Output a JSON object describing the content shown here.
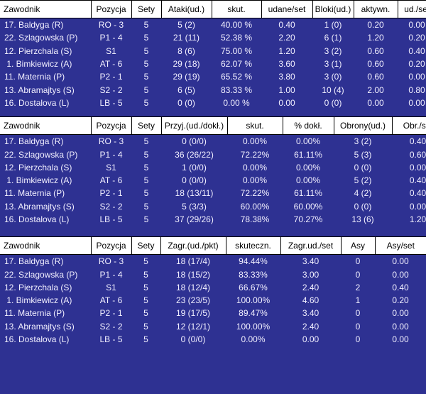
{
  "theme": {
    "bg": "#2E3192",
    "header_bg": "#FFFFFF",
    "header_text": "#000000",
    "row_text": "#F2F0FF",
    "border": "#000000"
  },
  "tables": [
    {
      "title": "attack-and-block-stats",
      "columns": [
        "Zawodnik",
        "Pozycja",
        "Sety",
        "Ataki(ud.)",
        "skut.",
        "udane/set",
        "Bloki(ud.)",
        "aktywn.",
        "ud./set"
      ],
      "rows": [
        [
          "17. Baldyga (R)",
          "RO - 3",
          "5",
          "5 (2)",
          "40.00 %",
          "0.40",
          "1 (0)",
          "0.20",
          "0.00"
        ],
        [
          "22. Szlagowska (P)",
          "P1 - 4",
          "5",
          "21 (11)",
          "52.38 %",
          "2.20",
          "6 (1)",
          "1.20",
          "0.20"
        ],
        [
          "12. Pierzchala (S)",
          "S1",
          "5",
          "8 (6)",
          "75.00 %",
          "1.20",
          "3 (2)",
          "0.60",
          "0.40"
        ],
        [
          " 1. Bimkiewicz (A)",
          "AT - 6",
          "5",
          "29 (18)",
          "62.07 %",
          "3.60",
          "3 (1)",
          "0.60",
          "0.20"
        ],
        [
          "11. Maternia (P)",
          "P2 - 1",
          "5",
          "29 (19)",
          "65.52 %",
          "3.80",
          "3 (0)",
          "0.60",
          "0.00"
        ],
        [
          "13. Abramajtys (S)",
          "S2 - 2",
          "5",
          "6 (5)",
          "83.33 %",
          "1.00",
          "10 (4)",
          "2.00",
          "0.80"
        ],
        [
          "16. Dostalova (L)",
          "LB - 5",
          "5",
          "0 (0)",
          "0.00 %",
          "0.00",
          "0 (0)",
          "0.00",
          "0.00"
        ]
      ]
    },
    {
      "title": "reception-and-defense-stats",
      "columns": [
        "Zawodnik",
        "Pozycja",
        "Sety",
        "Przyj.(ud./dokł.)",
        "skut.",
        "% dokł.",
        "Obrony(ud.)",
        "Obr./set"
      ],
      "rows": [
        [
          "17. Baldyga (R)",
          "RO - 3",
          "5",
          "0 (0/0)",
          "0.00%",
          "0.00%",
          "3 (2)",
          "0.40"
        ],
        [
          "22. Szlagowska (P)",
          "P1 - 4",
          "5",
          "36 (26/22)",
          "72.22%",
          "61.11%",
          "5 (3)",
          "0.60"
        ],
        [
          "12. Pierzchala (S)",
          "S1",
          "5",
          "1 (0/0)",
          "0.00%",
          "0.00%",
          "0 (0)",
          "0.00"
        ],
        [
          " 1. Bimkiewicz (A)",
          "AT - 6",
          "5",
          "0 (0/0)",
          "0.00%",
          "0.00%",
          "5 (2)",
          "0.40"
        ],
        [
          "11. Maternia (P)",
          "P2 - 1",
          "5",
          "18 (13/11)",
          "72.22%",
          "61.11%",
          "4 (2)",
          "0.40"
        ],
        [
          "13. Abramajtys (S)",
          "S2 - 2",
          "5",
          "5 (3/3)",
          "60.00%",
          "60.00%",
          "0 (0)",
          "0.00"
        ],
        [
          "16. Dostalova (L)",
          "LB - 5",
          "5",
          "37 (29/26)",
          "78.38%",
          "70.27%",
          "13 (6)",
          "1.20"
        ]
      ]
    },
    {
      "title": "serve-stats",
      "columns": [
        "Zawodnik",
        "Pozycja",
        "Sety",
        "Zagr.(ud./pkt)",
        "skuteczn.",
        "Zagr.ud./set",
        "Asy",
        "Asy/set"
      ],
      "rows": [
        [
          "17. Baldyga (R)",
          "RO - 3",
          "5",
          "18 (17/4)",
          "94.44%",
          "3.40",
          "0",
          "0.00"
        ],
        [
          "22. Szlagowska (P)",
          "P1 - 4",
          "5",
          "18 (15/2)",
          "83.33%",
          "3.00",
          "0",
          "0.00"
        ],
        [
          "12. Pierzchala (S)",
          "S1",
          "5",
          "18 (12/4)",
          "66.67%",
          "2.40",
          "2",
          "0.40"
        ],
        [
          " 1. Bimkiewicz (A)",
          "AT - 6",
          "5",
          "23 (23/5)",
          "100.00%",
          "4.60",
          "1",
          "0.20"
        ],
        [
          "11. Maternia (P)",
          "P2 - 1",
          "5",
          "19 (17/5)",
          "89.47%",
          "3.40",
          "0",
          "0.00"
        ],
        [
          "13. Abramajtys (S)",
          "S2 - 2",
          "5",
          "12 (12/1)",
          "100.00%",
          "2.40",
          "0",
          "0.00"
        ],
        [
          "16. Dostalova (L)",
          "LB - 5",
          "5",
          "0 (0/0)",
          "0.00%",
          "0.00",
          "0",
          "0.00"
        ]
      ]
    }
  ]
}
